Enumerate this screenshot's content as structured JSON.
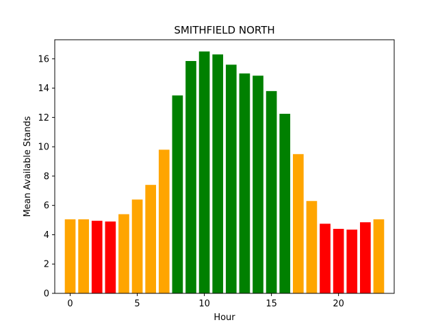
{
  "chart_data": {
    "type": "bar",
    "title": "SMITHFIELD NORTH",
    "xlabel": "Hour",
    "ylabel": "Mean Available Stands",
    "x": [
      0,
      1,
      2,
      3,
      4,
      5,
      6,
      7,
      8,
      9,
      10,
      11,
      12,
      13,
      14,
      15,
      16,
      17,
      18,
      19,
      20,
      21,
      22,
      23
    ],
    "values": [
      5.05,
      5.05,
      4.95,
      4.9,
      5.4,
      6.4,
      7.4,
      9.8,
      13.5,
      15.85,
      16.5,
      16.3,
      15.6,
      15.0,
      14.85,
      13.8,
      12.25,
      9.5,
      6.3,
      4.75,
      4.4,
      4.35,
      4.85,
      5.05
    ],
    "colors": [
      "orange",
      "orange",
      "red",
      "red",
      "orange",
      "orange",
      "orange",
      "orange",
      "green",
      "green",
      "green",
      "green",
      "green",
      "green",
      "green",
      "green",
      "green",
      "orange",
      "orange",
      "red",
      "red",
      "red",
      "red",
      "orange"
    ],
    "palette": {
      "orange": "#ffa500",
      "red": "#ff0000",
      "green": "#008000"
    },
    "xlim": [
      -1.15,
      24.15
    ],
    "ylim": [
      0,
      17.3
    ],
    "xticks": [
      0,
      5,
      10,
      15,
      20
    ],
    "yticks": [
      0,
      2,
      4,
      6,
      8,
      10,
      12,
      14,
      16
    ],
    "grid": false,
    "legend": "none"
  }
}
